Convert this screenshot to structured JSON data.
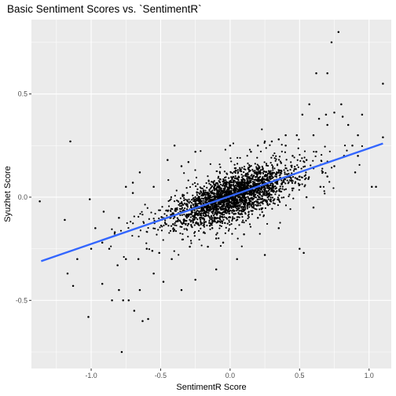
{
  "chart_data": {
    "type": "scatter",
    "title": "Basic Sentiment Scores vs. `SentimentR`",
    "xlabel": "SentimentR Score",
    "ylabel": "Syuzhet Score",
    "xlim": [
      -1.43,
      1.16
    ],
    "ylim": [
      -0.83,
      0.86
    ],
    "x_ticks": [
      {
        "value": -1.0,
        "label": "-1.0"
      },
      {
        "value": -0.5,
        "label": "-0.5"
      },
      {
        "value": 0.0,
        "label": "0.0"
      },
      {
        "value": 0.5,
        "label": "0.5"
      },
      {
        "value": 1.0,
        "label": "1.0"
      }
    ],
    "y_ticks": [
      {
        "value": -0.5,
        "label": "-0.5"
      },
      {
        "value": 0.0,
        "label": "0.0"
      },
      {
        "value": 0.5,
        "label": "0.5"
      }
    ],
    "grid": true,
    "colors": {
      "panel_background": "#ebebeb",
      "gridline": "#ffffff",
      "points": "#000000",
      "trend_line": "#3366ff"
    },
    "trend_line": {
      "method": "linear",
      "x": [
        -1.36,
        1.1
      ],
      "y": [
        -0.31,
        0.26
      ]
    },
    "points_note_free": true,
    "points": [
      [
        -1.37,
        -0.02
      ],
      [
        -1.19,
        -0.11
      ],
      [
        -1.15,
        0.27
      ],
      [
        -1.17,
        -0.37
      ],
      [
        -1.13,
        -0.43
      ],
      [
        -1.02,
        -0.58
      ],
      [
        -1.01,
        -0.01
      ],
      [
        -0.92,
        -0.42
      ],
      [
        -0.85,
        -0.5
      ],
      [
        -0.8,
        -0.45
      ],
      [
        -0.77,
        -0.5
      ],
      [
        -0.73,
        -0.5
      ],
      [
        -0.69,
        -0.55
      ],
      [
        -0.63,
        -0.6
      ],
      [
        -0.59,
        -0.59
      ],
      [
        -0.78,
        -0.75
      ],
      [
        -0.4,
        0.25
      ],
      [
        0.0,
        0.25
      ],
      [
        0.52,
        0.4
      ],
      [
        0.57,
        0.45
      ],
      [
        0.62,
        0.6
      ],
      [
        0.7,
        0.6
      ],
      [
        0.73,
        0.75
      ],
      [
        0.78,
        0.8
      ],
      [
        0.8,
        0.45
      ],
      [
        0.81,
        0.39
      ],
      [
        0.75,
        0.41
      ],
      [
        0.69,
        0.4
      ],
      [
        0.64,
        0.38
      ],
      [
        0.6,
        0.3
      ],
      [
        0.7,
        0.35
      ],
      [
        0.85,
        0.35
      ],
      [
        0.92,
        0.3
      ],
      [
        0.95,
        0.4
      ],
      [
        1.1,
        0.55
      ],
      [
        1.1,
        0.29
      ],
      [
        1.02,
        0.05
      ],
      [
        1.05,
        0.05
      ],
      [
        0.92,
        0.2
      ],
      [
        0.88,
        0.25
      ],
      [
        -0.75,
        0.05
      ],
      [
        -0.7,
        0.02
      ],
      [
        -0.7,
        0.07
      ],
      [
        -0.8,
        -0.1
      ],
      [
        -0.91,
        -0.07
      ],
      [
        -0.92,
        -0.22
      ],
      [
        -0.87,
        -0.25
      ],
      [
        -0.81,
        -0.33
      ],
      [
        -0.75,
        -0.3
      ],
      [
        -0.66,
        -0.3
      ],
      [
        -0.6,
        -0.25
      ],
      [
        -0.56,
        -0.26
      ],
      [
        -0.51,
        -0.27
      ],
      [
        -0.42,
        -0.3
      ],
      [
        -0.29,
        -0.24
      ],
      [
        -0.16,
        -0.24
      ],
      [
        -0.1,
        -0.2
      ],
      [
        -0.05,
        -0.22
      ],
      [
        0.1,
        -0.18
      ],
      [
        0.2,
        -0.1
      ],
      [
        0.35,
        -0.15
      ],
      [
        0.5,
        -0.25
      ],
      [
        0.53,
        -0.27
      ],
      [
        0.6,
        -0.05
      ],
      [
        0.55,
        0.0
      ],
      [
        0.5,
        0.1
      ],
      [
        0.45,
        0.2
      ],
      [
        0.4,
        0.25
      ],
      [
        0.4,
        0.3
      ],
      [
        0.35,
        0.28
      ],
      [
        0.3,
        0.27
      ],
      [
        0.25,
        0.27
      ],
      [
        0.2,
        0.25
      ],
      [
        0.15,
        0.22
      ],
      [
        -0.3,
        0.17
      ],
      [
        -0.25,
        0.22
      ],
      [
        -0.35,
        0.15
      ],
      [
        -0.45,
        0.18
      ],
      [
        -0.55,
        0.05
      ],
      [
        -0.65,
        0.12
      ],
      [
        -1.0,
        -0.25
      ],
      [
        -1.1,
        -0.3
      ],
      [
        -0.97,
        -0.15
      ],
      [
        -0.83,
        -0.17
      ],
      [
        -0.65,
        -0.45
      ],
      [
        -0.48,
        -0.41
      ],
      [
        -0.55,
        -0.37
      ],
      [
        -0.35,
        -0.45
      ],
      [
        -0.25,
        -0.4
      ],
      [
        -0.1,
        -0.35
      ],
      [
        0.05,
        -0.3
      ],
      [
        0.25,
        -0.28
      ],
      [
        0.75,
        0.15
      ],
      [
        0.82,
        0.2
      ],
      [
        0.7,
        0.1
      ],
      [
        0.65,
        0.05
      ],
      [
        0.62,
        0.22
      ],
      [
        0.55,
        0.18
      ],
      [
        0.48,
        0.3
      ],
      [
        0.9,
        0.12
      ]
    ],
    "cloud": {
      "n": 2600,
      "x_mean": 0.02,
      "x_sd": 0.2,
      "slope": 0.23,
      "intercept": 0.0,
      "y_sd": 0.05
    }
  }
}
